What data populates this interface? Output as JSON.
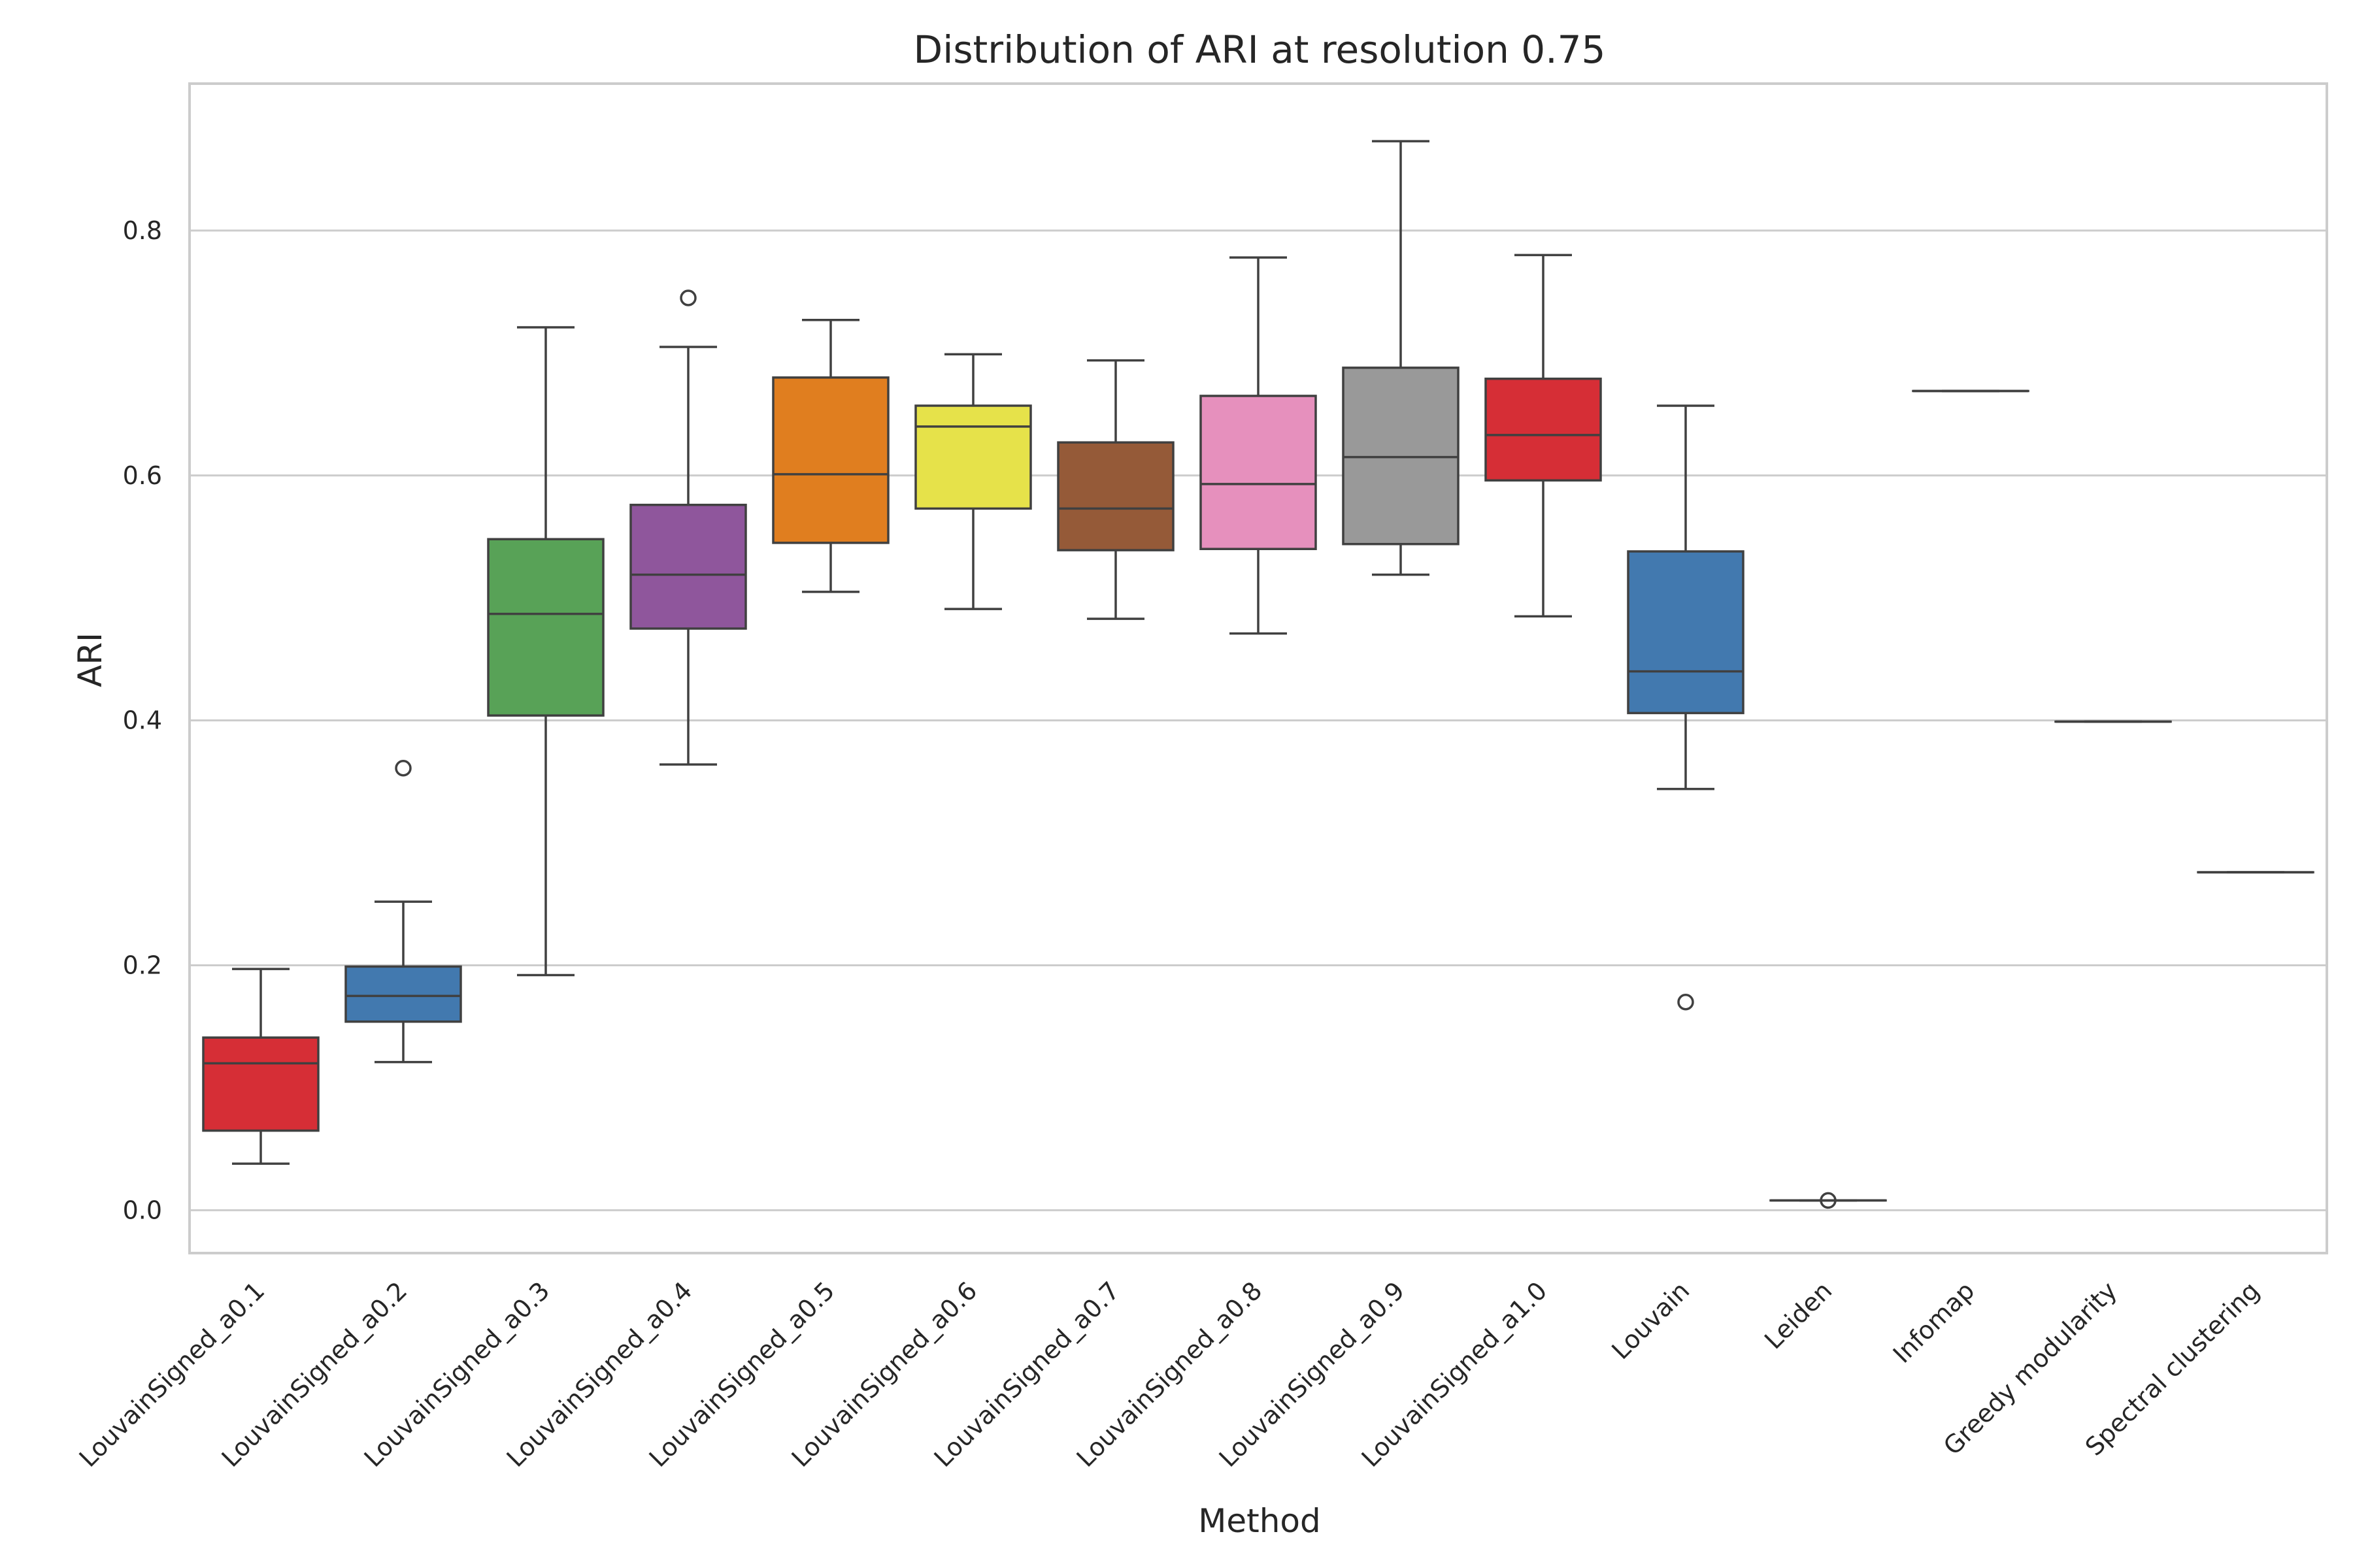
{
  "chart_data": {
    "type": "box",
    "title": "Distribution of ARI at resolution 0.75",
    "xlabel": "Method",
    "ylabel": "ARI",
    "ylim": [
      -0.035,
      0.92
    ],
    "yticks": [
      0.0,
      0.2,
      0.4,
      0.6,
      0.8
    ],
    "ytick_labels": [
      "0.0",
      "0.2",
      "0.4",
      "0.6",
      "0.8"
    ],
    "grid": "horizontal",
    "categories": [
      "LouvainSigned_a0.1",
      "LouvainSigned_a0.2",
      "LouvainSigned_a0.3",
      "LouvainSigned_a0.4",
      "LouvainSigned_a0.5",
      "LouvainSigned_a0.6",
      "LouvainSigned_a0.7",
      "LouvainSigned_a0.8",
      "LouvainSigned_a0.9",
      "LouvainSigned_a1.0",
      "Louvain",
      "Leiden",
      "Infomap",
      "Greedy modularity",
      "Spectral clustering"
    ],
    "boxes": [
      {
        "whislo": 0.038,
        "q1": 0.065,
        "med": 0.12,
        "q3": 0.141,
        "whishi": 0.197,
        "fliers": [],
        "color": "#d62e36"
      },
      {
        "whislo": 0.121,
        "q1": 0.154,
        "med": 0.175,
        "q3": 0.199,
        "whishi": 0.252,
        "fliers": [
          0.361
        ],
        "color": "#4279af"
      },
      {
        "whislo": 0.192,
        "q1": 0.404,
        "med": 0.487,
        "q3": 0.548,
        "whishi": 0.721,
        "fliers": [],
        "color": "#58a257"
      },
      {
        "whislo": 0.364,
        "q1": 0.475,
        "med": 0.519,
        "q3": 0.576,
        "whishi": 0.705,
        "fliers": [
          0.745
        ],
        "color": "#8f569c"
      },
      {
        "whislo": 0.505,
        "q1": 0.545,
        "med": 0.601,
        "q3": 0.68,
        "whishi": 0.727,
        "fliers": [],
        "color": "#e07e1f"
      },
      {
        "whislo": 0.491,
        "q1": 0.573,
        "med": 0.64,
        "q3": 0.657,
        "whishi": 0.699,
        "fliers": [],
        "color": "#e6e24a"
      },
      {
        "whislo": 0.483,
        "q1": 0.539,
        "med": 0.573,
        "q3": 0.627,
        "whishi": 0.694,
        "fliers": [],
        "color": "#955a38"
      },
      {
        "whislo": 0.471,
        "q1": 0.54,
        "med": 0.593,
        "q3": 0.665,
        "whishi": 0.778,
        "fliers": [],
        "color": "#e690bd"
      },
      {
        "whislo": 0.519,
        "q1": 0.544,
        "med": 0.615,
        "q3": 0.688,
        "whishi": 0.873,
        "fliers": [],
        "color": "#999999"
      },
      {
        "whislo": 0.485,
        "q1": 0.596,
        "med": 0.633,
        "q3": 0.679,
        "whishi": 0.78,
        "fliers": [],
        "color": "#d62e36"
      },
      {
        "whislo": 0.344,
        "q1": 0.406,
        "med": 0.44,
        "q3": 0.538,
        "whishi": 0.657,
        "fliers": [
          0.17
        ],
        "color": "#4279af"
      },
      {
        "whislo": 0.008,
        "q1": 0.008,
        "med": 0.008,
        "q3": 0.008,
        "whishi": 0.008,
        "fliers": [
          0.008
        ],
        "color": "#58a257"
      },
      {
        "whislo": 0.669,
        "q1": 0.669,
        "med": 0.669,
        "q3": 0.669,
        "whishi": 0.669,
        "fliers": [],
        "color": "#8f569c"
      },
      {
        "whislo": 0.399,
        "q1": 0.399,
        "med": 0.399,
        "q3": 0.399,
        "whishi": 0.399,
        "fliers": [],
        "color": "#e07e1f"
      },
      {
        "whislo": 0.276,
        "q1": 0.276,
        "med": 0.276,
        "q3": 0.276,
        "whishi": 0.276,
        "fliers": [],
        "color": "#e6e24a"
      }
    ]
  }
}
